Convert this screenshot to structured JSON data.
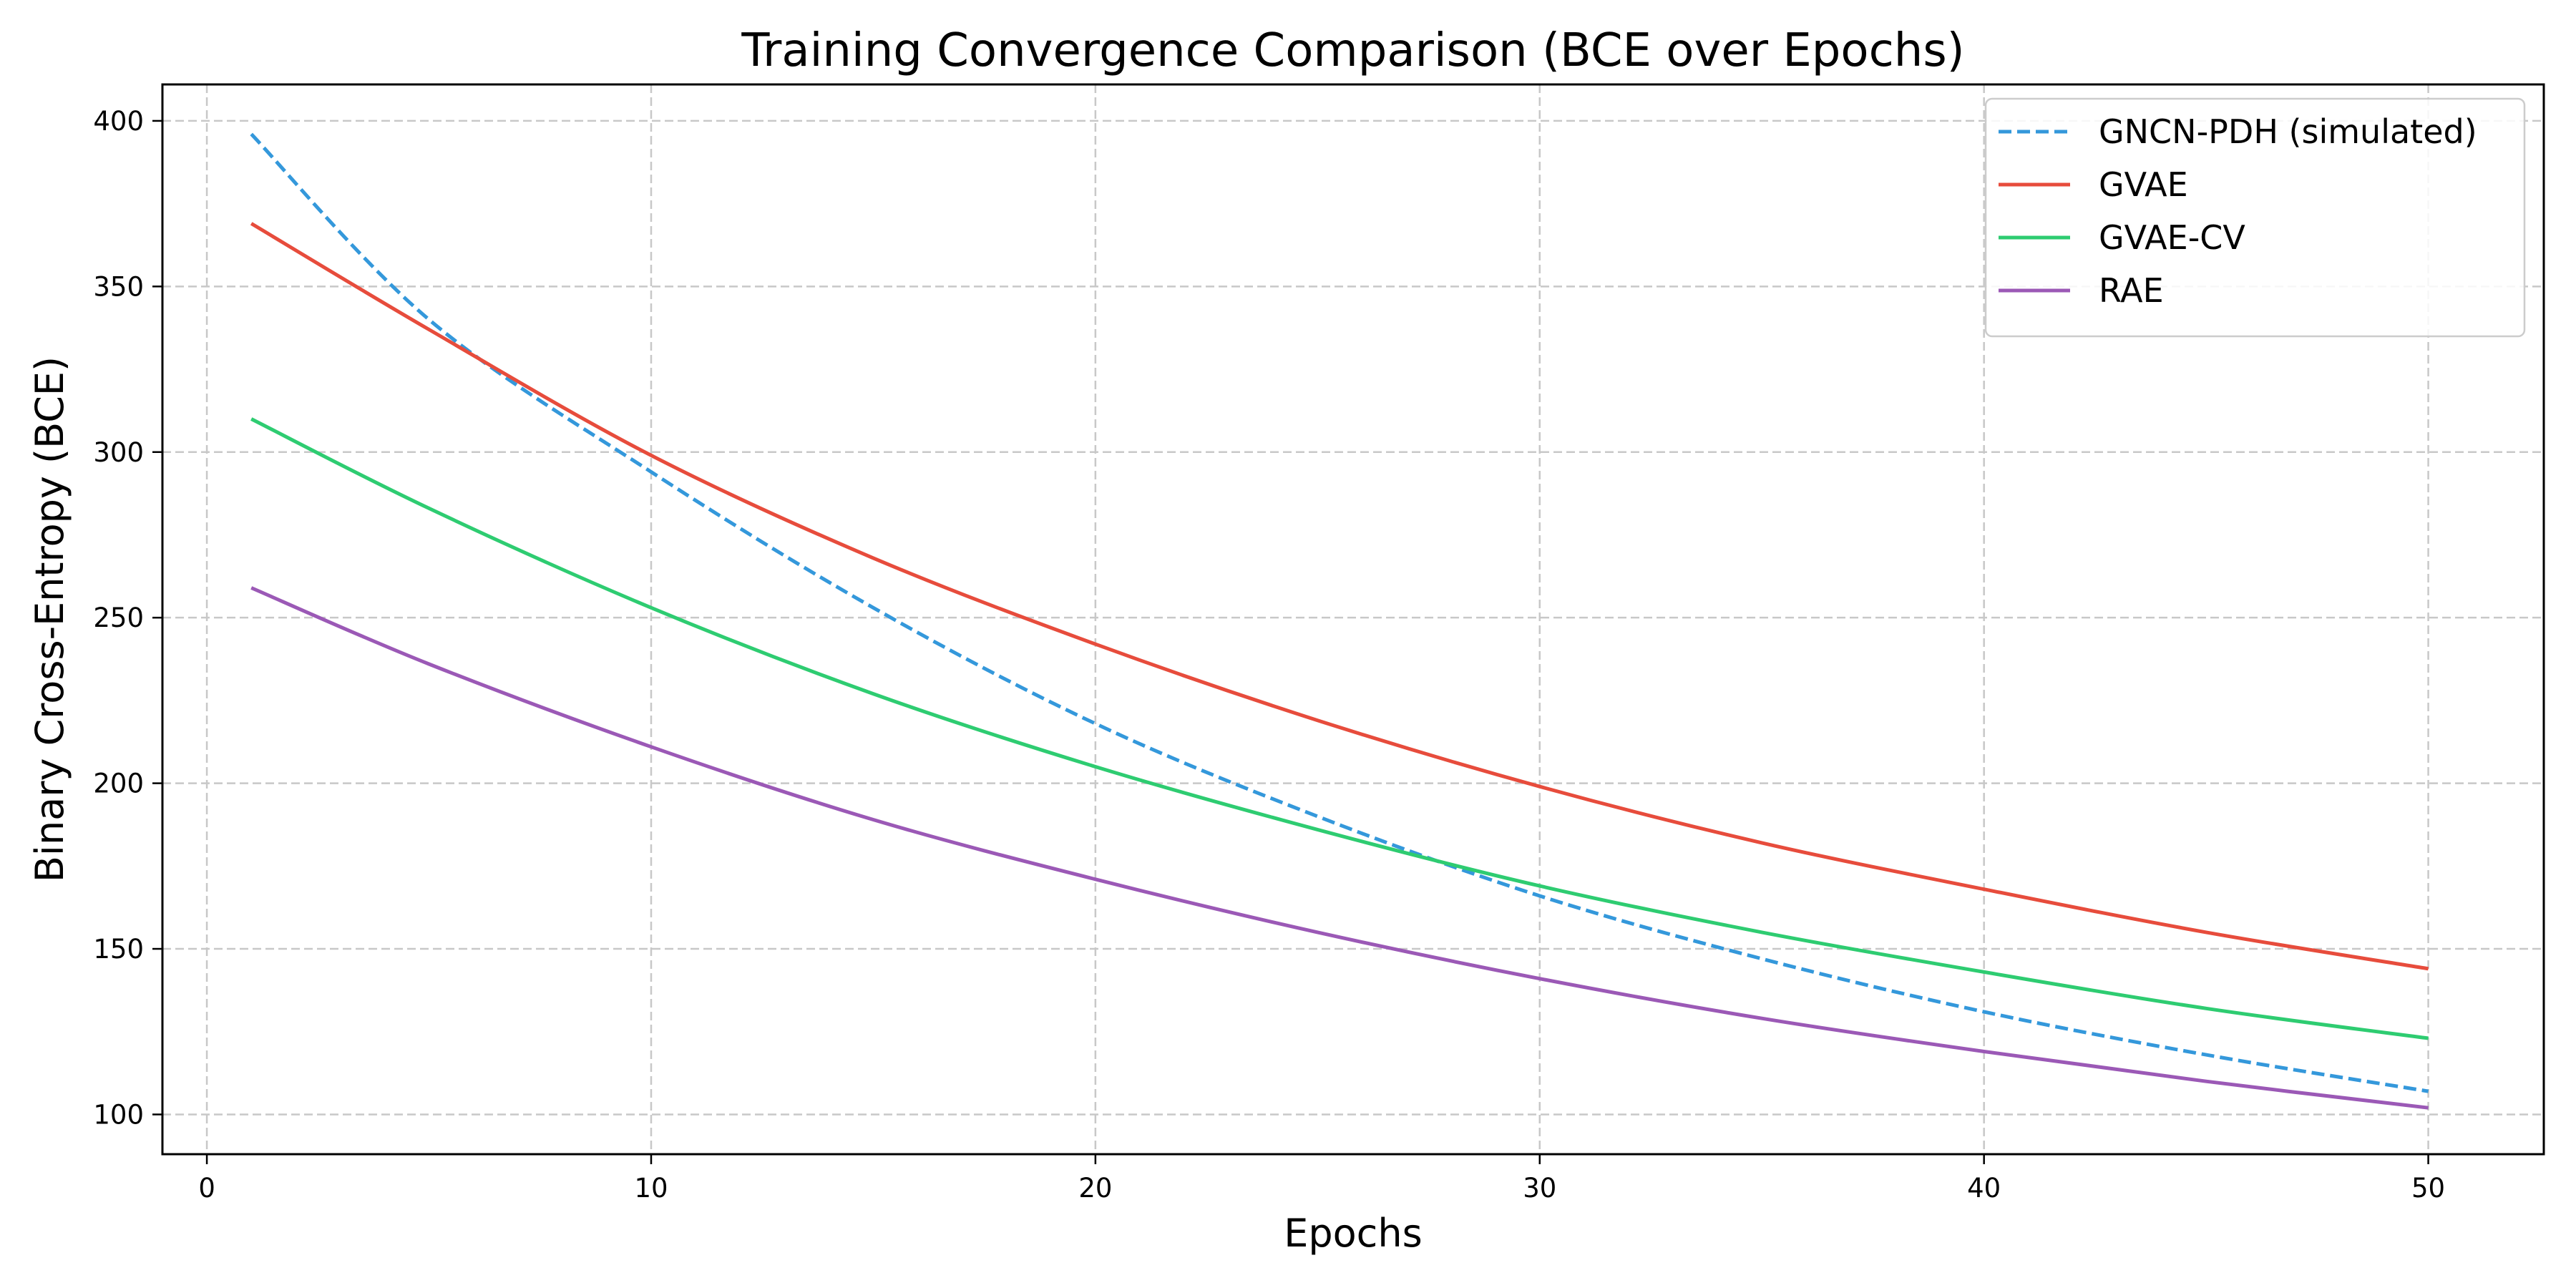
{
  "chart_data": {
    "type": "line",
    "title": "Training Convergence Comparison (BCE over Epochs)",
    "xlabel": "Epochs",
    "ylabel": "Binary Cross-Entropy (BCE)",
    "xlim": [
      -1,
      52.6
    ],
    "ylim": [
      88,
      411
    ],
    "xticks": [
      0,
      10,
      20,
      30,
      40,
      50
    ],
    "yticks": [
      100,
      150,
      200,
      250,
      300,
      350,
      400
    ],
    "grid": true,
    "legend_position": "top-right",
    "x": [
      1,
      5,
      10,
      15,
      20,
      25,
      30,
      35,
      40,
      45,
      50
    ],
    "series": [
      {
        "name": "GNCN-PDH (simulated)",
        "color": "#3498db",
        "dash": true,
        "values": [
          396,
          340,
          294,
          253,
          218,
          190,
          166,
          147,
          131,
          118,
          107
        ]
      },
      {
        "name": "GVAE",
        "color": "#e74c3c",
        "dash": false,
        "values": [
          369,
          337,
          299,
          268,
          242,
          219,
          199,
          182,
          168,
          155,
          144
        ]
      },
      {
        "name": "GVAE-CV",
        "color": "#2ecc71",
        "dash": false,
        "values": [
          310,
          283,
          253,
          227,
          205,
          186,
          169,
          155,
          143,
          132,
          123
        ]
      },
      {
        "name": "RAE",
        "color": "#9b59b6",
        "dash": false,
        "values": [
          259,
          236,
          211,
          189,
          171,
          155,
          141,
          129,
          119,
          110,
          102
        ]
      }
    ]
  }
}
